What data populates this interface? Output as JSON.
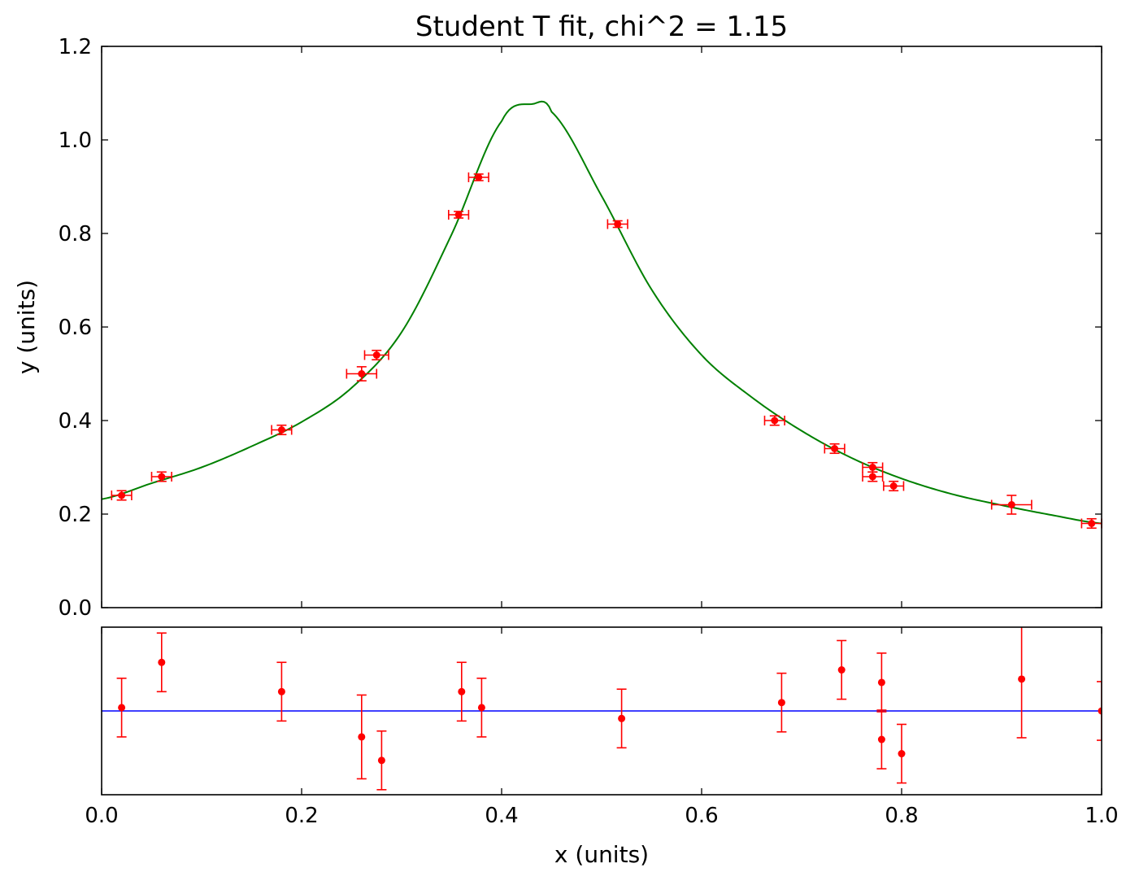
{
  "colors": {
    "fit_curve": "#008000",
    "data_points": "#ff0000",
    "residual_baseline": "#0000ff",
    "axes": "#000000",
    "background": "#ffffff"
  },
  "chart_data": [
    {
      "panel": "main",
      "type": "scatter",
      "title": "Student T fit, chi^2 = 1.15",
      "xlabel": "",
      "ylabel": "y (units)",
      "xlim": [
        0.0,
        1.0
      ],
      "ylim": [
        0.0,
        1.2
      ],
      "x_ticks": [
        "0.0",
        "0.2",
        "0.4",
        "0.6",
        "0.8",
        "1.0"
      ],
      "x_tick_labels_shown": false,
      "y_ticks": [
        "0.0",
        "0.2",
        "0.4",
        "0.6",
        "0.8",
        "1.0",
        "1.2"
      ],
      "grid": false,
      "legend": "none",
      "fit_curve": {
        "model": "student-t",
        "color": "#008000",
        "peak_x": 0.432,
        "peak_y": 1.077,
        "y_at_x0": 0.232,
        "y_at_x1": 0.18,
        "samples_x": [
          0.0,
          0.05,
          0.1,
          0.15,
          0.2,
          0.25,
          0.3,
          0.35,
          0.4,
          0.432,
          0.45,
          0.5,
          0.55,
          0.6,
          0.65,
          0.7,
          0.75,
          0.8,
          0.85,
          0.9,
          0.95,
          1.0
        ],
        "samples_y": [
          0.232,
          0.266,
          0.3,
          0.345,
          0.397,
          0.47,
          0.589,
          0.798,
          1.04,
          1.077,
          1.06,
          0.88,
          0.68,
          0.54,
          0.45,
          0.378,
          0.32,
          0.276,
          0.243,
          0.219,
          0.198,
          0.18
        ]
      },
      "points": [
        {
          "x": 0.02,
          "y": 0.24,
          "xerr": 0.01,
          "yerr": 0.01
        },
        {
          "x": 0.06,
          "y": 0.28,
          "xerr": 0.01,
          "yerr": 0.01
        },
        {
          "x": 0.18,
          "y": 0.38,
          "xerr": 0.01,
          "yerr": 0.01
        },
        {
          "x": 0.26,
          "y": 0.5,
          "xerr": 0.015,
          "yerr": 0.015
        },
        {
          "x": 0.275,
          "y": 0.54,
          "xerr": 0.012,
          "yerr": 0.01
        },
        {
          "x": 0.357,
          "y": 0.84,
          "xerr": 0.01,
          "yerr": 0.007
        },
        {
          "x": 0.377,
          "y": 0.92,
          "xerr": 0.01,
          "yerr": 0.007
        },
        {
          "x": 0.516,
          "y": 0.82,
          "xerr": 0.01,
          "yerr": 0.007
        },
        {
          "x": 0.673,
          "y": 0.4,
          "xerr": 0.01,
          "yerr": 0.01
        },
        {
          "x": 0.733,
          "y": 0.34,
          "xerr": 0.01,
          "yerr": 0.01
        },
        {
          "x": 0.771,
          "y": 0.3,
          "xerr": 0.01,
          "yerr": 0.01
        },
        {
          "x": 0.771,
          "y": 0.28,
          "xerr": 0.01,
          "yerr": 0.01
        },
        {
          "x": 0.792,
          "y": 0.26,
          "xerr": 0.01,
          "yerr": 0.01
        },
        {
          "x": 0.91,
          "y": 0.22,
          "xerr": 0.02,
          "yerr": 0.02
        },
        {
          "x": 0.99,
          "y": 0.18,
          "xerr": 0.01,
          "yerr": 0.01
        }
      ]
    },
    {
      "panel": "residuals",
      "type": "scatter",
      "title": "",
      "xlabel": "x (units)",
      "ylabel": "",
      "xlim": [
        0.0,
        1.0
      ],
      "ylim": [
        -1.0,
        1.0
      ],
      "x_ticks": [
        "0.0",
        "0.2",
        "0.4",
        "0.6",
        "0.8",
        "1.0"
      ],
      "y_tick_labels_shown": false,
      "grid": false,
      "legend": "none",
      "baseline": {
        "y": 0.0,
        "color": "#0000ff"
      },
      "points": [
        {
          "x": 0.02,
          "y": 0.04,
          "yerr": 0.35
        },
        {
          "x": 0.06,
          "y": 0.58,
          "yerr": 0.35
        },
        {
          "x": 0.18,
          "y": 0.23,
          "yerr": 0.35
        },
        {
          "x": 0.26,
          "y": -0.31,
          "yerr": 0.5
        },
        {
          "x": 0.28,
          "y": -0.59,
          "yerr": 0.35
        },
        {
          "x": 0.36,
          "y": 0.23,
          "yerr": 0.35
        },
        {
          "x": 0.38,
          "y": 0.04,
          "yerr": 0.35
        },
        {
          "x": 0.52,
          "y": -0.09,
          "yerr": 0.35
        },
        {
          "x": 0.68,
          "y": 0.1,
          "yerr": 0.35
        },
        {
          "x": 0.74,
          "y": 0.49,
          "yerr": 0.35
        },
        {
          "x": 0.78,
          "y": 0.34,
          "yerr": 0.35
        },
        {
          "x": 0.78,
          "y": -0.34,
          "yerr": 0.35
        },
        {
          "x": 0.8,
          "y": -0.51,
          "yerr": 0.35
        },
        {
          "x": 0.92,
          "y": 0.38,
          "yerr": 0.7
        },
        {
          "x": 1.0,
          "y": 0.0,
          "yerr": 0.35
        }
      ]
    }
  ]
}
